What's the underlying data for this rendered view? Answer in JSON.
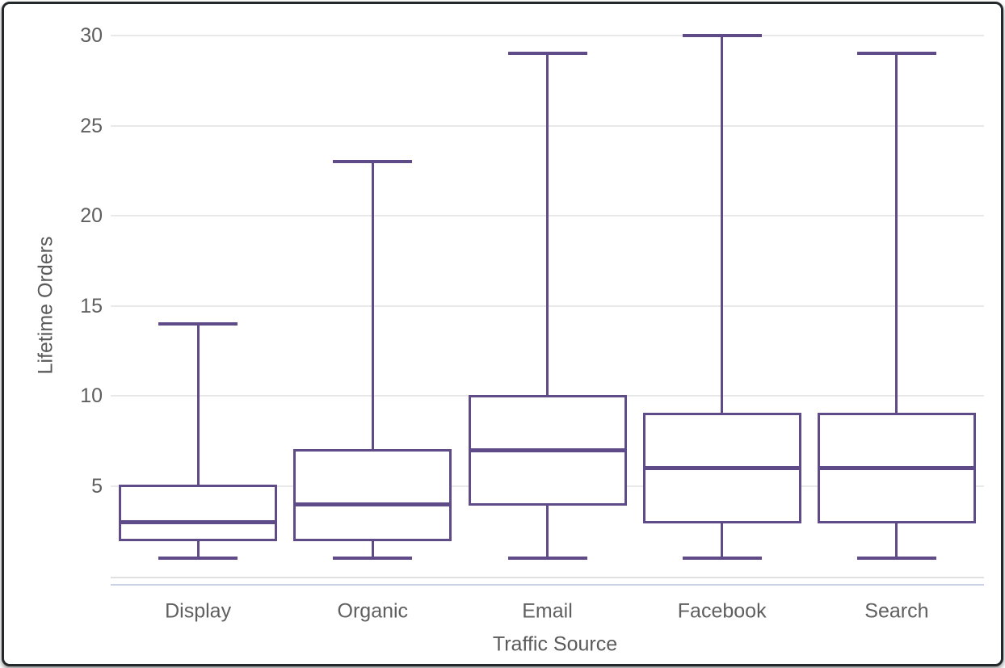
{
  "chart": {
    "y_axis_title": "Lifetime Orders",
    "x_axis_title": "Traffic Source",
    "colors": {
      "box_stroke": "#5e4b87",
      "gridline": "#e9e9e9",
      "axis_baseline": "#e0e0e0",
      "accent_line": "#c9d2e6",
      "tick_text": "#5f5f5f",
      "frame_border": "#23282b",
      "background": "#ffffff"
    }
  },
  "chart_data": {
    "type": "boxplot",
    "title": "",
    "xlabel": "Traffic Source",
    "ylabel": "Lifetime Orders",
    "categories": [
      "Display",
      "Organic",
      "Email",
      "Facebook",
      "Search"
    ],
    "series": [
      {
        "name": "Display",
        "min": 1,
        "q1": 2,
        "median": 3,
        "q3": 5,
        "max": 14
      },
      {
        "name": "Organic",
        "min": 1,
        "q1": 2,
        "median": 4,
        "q3": 7,
        "max": 23
      },
      {
        "name": "Email",
        "min": 1,
        "q1": 4,
        "median": 7,
        "q3": 10,
        "max": 29
      },
      {
        "name": "Facebook",
        "min": 1,
        "q1": 3,
        "median": 6,
        "q3": 9,
        "max": 30
      },
      {
        "name": "Search",
        "min": 1,
        "q1": 3,
        "median": 6,
        "q3": 9,
        "max": 29
      }
    ],
    "ylim": [
      0,
      30
    ],
    "yticks": [
      5,
      10,
      15,
      20,
      25,
      30
    ],
    "grid": true,
    "legend": false,
    "outliers": []
  }
}
